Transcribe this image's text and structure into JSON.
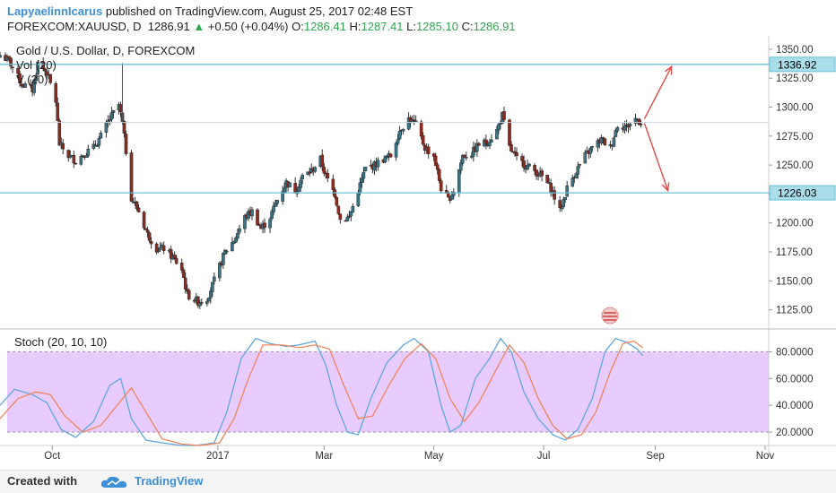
{
  "header": {
    "author": "LapyaelinnIcarus",
    "published_text": "published on TradingView.com, August 25, 2017 02:48 EST",
    "symbol": "FOREXCOM:XAUUSD, D",
    "last": "1286.91",
    "change": "+0.50 (+0.04%)",
    "o_label": "O:",
    "o": "1286.41",
    "h_label": "H:",
    "h": "1287.41",
    "l_label": "L:",
    "l": "1285.10",
    "c_label": "C:",
    "c": "1286.91"
  },
  "legend": {
    "title": "Gold / U.S. Dollar, D, FOREXCOM",
    "vol": "Vol (20)",
    "vol2": "V (20)"
  },
  "osc_title": "Stoch (20, 10, 10)",
  "footer": {
    "created": "Created with",
    "brand": "TradingView"
  },
  "colors": {
    "up": "#3a7385",
    "down": "#8b2a1f",
    "level": "#69c0d4",
    "k": "#5fa7e0",
    "d": "#f0845a",
    "band": "#e9ccff",
    "arrow": "#e34a4a"
  },
  "chart_data": [
    {
      "type": "candlestick",
      "title": "Gold / U.S. Dollar, D, FOREXCOM",
      "ylim": [
        1110,
        1360
      ],
      "y_ticks": [
        "1350.00",
        "1325.00",
        "1300.00",
        "1275.00",
        "1250.00",
        "1225.00",
        "1200.00",
        "1175.00",
        "1150.00",
        "1125.00"
      ],
      "x_ticks": [
        "Oct",
        "2017",
        "Mar",
        "May",
        "Jul",
        "Sep",
        "Nov"
      ],
      "x_tick_dates": [
        "2016-10-01",
        "2017-01-01",
        "2017-03-01",
        "2017-05-01",
        "2017-07-01",
        "2017-09-01",
        "2017-11-01"
      ],
      "x_range": [
        "2016-09-02",
        "2017-11-03"
      ],
      "levels": [
        {
          "label": "1336.92",
          "value": 1336.92
        },
        {
          "label": "1226.03",
          "value": 1226.03
        }
      ],
      "last_price": 1286.91,
      "projections": [
        {
          "from_date": "2017-08-26",
          "from": 1290,
          "to_date": "2017-09-10",
          "to": 1335
        },
        {
          "from_date": "2017-08-26",
          "from": 1286,
          "to_date": "2017-09-08",
          "to": 1228
        }
      ],
      "close_path": [
        [
          "2016-09-02",
          1345
        ],
        [
          "2016-09-07",
          1340
        ],
        [
          "2016-09-14",
          1320
        ],
        [
          "2016-09-20",
          1315
        ],
        [
          "2016-09-23",
          1338
        ],
        [
          "2016-09-28",
          1330
        ],
        [
          "2016-10-03",
          1305
        ],
        [
          "2016-10-05",
          1268
        ],
        [
          "2016-10-10",
          1258
        ],
        [
          "2016-10-14",
          1254
        ],
        [
          "2016-10-19",
          1260
        ],
        [
          "2016-10-24",
          1265
        ],
        [
          "2016-10-28",
          1275
        ],
        [
          "2016-11-02",
          1290
        ],
        [
          "2016-11-07",
          1302
        ],
        [
          "2016-11-09",
          1286
        ],
        [
          "2016-11-11",
          1262
        ],
        [
          "2016-11-14",
          1222
        ],
        [
          "2016-11-18",
          1210
        ],
        [
          "2016-11-23",
          1190
        ],
        [
          "2016-11-28",
          1178
        ],
        [
          "2016-12-02",
          1178
        ],
        [
          "2016-12-07",
          1170
        ],
        [
          "2016-12-12",
          1160
        ],
        [
          "2016-12-15",
          1138
        ],
        [
          "2016-12-21",
          1132
        ],
        [
          "2016-12-26",
          1135
        ],
        [
          "2016-12-30",
          1150
        ],
        [
          "2017-01-05",
          1175
        ],
        [
          "2017-01-10",
          1185
        ],
        [
          "2017-01-16",
          1205
        ],
        [
          "2017-01-20",
          1210
        ],
        [
          "2017-01-25",
          1195
        ],
        [
          "2017-01-30",
          1205
        ],
        [
          "2017-02-03",
          1220
        ],
        [
          "2017-02-08",
          1235
        ],
        [
          "2017-02-13",
          1228
        ],
        [
          "2017-02-17",
          1240
        ],
        [
          "2017-02-22",
          1245
        ],
        [
          "2017-02-27",
          1255
        ],
        [
          "2017-03-02",
          1240
        ],
        [
          "2017-03-07",
          1225
        ],
        [
          "2017-03-10",
          1203
        ],
        [
          "2017-03-15",
          1205
        ],
        [
          "2017-03-20",
          1228
        ],
        [
          "2017-03-24",
          1247
        ],
        [
          "2017-03-29",
          1250
        ],
        [
          "2017-04-03",
          1255
        ],
        [
          "2017-04-07",
          1258
        ],
        [
          "2017-04-12",
          1280
        ],
        [
          "2017-04-17",
          1290
        ],
        [
          "2017-04-21",
          1285
        ],
        [
          "2017-04-26",
          1265
        ],
        [
          "2017-05-01",
          1258
        ],
        [
          "2017-05-05",
          1230
        ],
        [
          "2017-05-09",
          1220
        ],
        [
          "2017-05-12",
          1228
        ],
        [
          "2017-05-17",
          1258
        ],
        [
          "2017-05-22",
          1260
        ],
        [
          "2017-05-26",
          1268
        ],
        [
          "2017-05-31",
          1270
        ],
        [
          "2017-06-05",
          1280
        ],
        [
          "2017-06-08",
          1293
        ],
        [
          "2017-06-12",
          1265
        ],
        [
          "2017-06-16",
          1255
        ],
        [
          "2017-06-21",
          1250
        ],
        [
          "2017-06-26",
          1245
        ],
        [
          "2017-06-30",
          1240
        ],
        [
          "2017-07-05",
          1230
        ],
        [
          "2017-07-10",
          1210
        ],
        [
          "2017-07-14",
          1230
        ],
        [
          "2017-07-19",
          1245
        ],
        [
          "2017-07-24",
          1258
        ],
        [
          "2017-07-28",
          1265
        ],
        [
          "2017-08-02",
          1272
        ],
        [
          "2017-08-07",
          1265
        ],
        [
          "2017-08-11",
          1285
        ],
        [
          "2017-08-16",
          1283
        ],
        [
          "2017-08-21",
          1290
        ],
        [
          "2017-08-24",
          1286.91
        ]
      ]
    },
    {
      "type": "line",
      "title": "Stoch (20, 10, 10)",
      "ylim": [
        10,
        95
      ],
      "y_ticks": [
        "80.0000",
        "60.0000",
        "40.0000",
        "20.0000"
      ],
      "band": [
        20,
        80
      ],
      "series": [
        {
          "color": "#5fa7e0",
          "points": [
            [
              "2016-09-02",
              40
            ],
            [
              "2016-09-10",
              52
            ],
            [
              "2016-09-20",
              48
            ],
            [
              "2016-09-28",
              42
            ],
            [
              "2016-10-06",
              22
            ],
            [
              "2016-10-14",
              16
            ],
            [
              "2016-10-24",
              28
            ],
            [
              "2016-11-02",
              55
            ],
            [
              "2016-11-08",
              60
            ],
            [
              "2016-11-14",
              30
            ],
            [
              "2016-11-22",
              14
            ],
            [
              "2016-12-01",
              12
            ],
            [
              "2016-12-12",
              10
            ],
            [
              "2016-12-20",
              10
            ],
            [
              "2016-12-30",
              12
            ],
            [
              "2017-01-06",
              35
            ],
            [
              "2017-01-14",
              75
            ],
            [
              "2017-01-22",
              90
            ],
            [
              "2017-01-30",
              86
            ],
            [
              "2017-02-08",
              84
            ],
            [
              "2017-02-15",
              85
            ],
            [
              "2017-02-24",
              88
            ],
            [
              "2017-03-02",
              70
            ],
            [
              "2017-03-08",
              40
            ],
            [
              "2017-03-14",
              20
            ],
            [
              "2017-03-20",
              18
            ],
            [
              "2017-03-27",
              45
            ],
            [
              "2017-04-05",
              72
            ],
            [
              "2017-04-14",
              85
            ],
            [
              "2017-04-20",
              90
            ],
            [
              "2017-04-28",
              80
            ],
            [
              "2017-05-05",
              40
            ],
            [
              "2017-05-10",
              20
            ],
            [
              "2017-05-16",
              25
            ],
            [
              "2017-05-24",
              60
            ],
            [
              "2017-06-01",
              75
            ],
            [
              "2017-06-07",
              90
            ],
            [
              "2017-06-13",
              80
            ],
            [
              "2017-06-20",
              50
            ],
            [
              "2017-06-28",
              30
            ],
            [
              "2017-07-06",
              18
            ],
            [
              "2017-07-13",
              14
            ],
            [
              "2017-07-20",
              22
            ],
            [
              "2017-07-28",
              45
            ],
            [
              "2017-08-04",
              80
            ],
            [
              "2017-08-10",
              90
            ],
            [
              "2017-08-16",
              87
            ],
            [
              "2017-08-22",
              82
            ],
            [
              "2017-08-25",
              77
            ]
          ]
        },
        {
          "color": "#f0845a",
          "points": [
            [
              "2016-09-02",
              30
            ],
            [
              "2016-09-12",
              45
            ],
            [
              "2016-09-22",
              50
            ],
            [
              "2016-09-30",
              48
            ],
            [
              "2016-10-08",
              32
            ],
            [
              "2016-10-18",
              20
            ],
            [
              "2016-10-28",
              25
            ],
            [
              "2016-11-06",
              40
            ],
            [
              "2016-11-14",
              53
            ],
            [
              "2016-11-22",
              35
            ],
            [
              "2016-12-01",
              15
            ],
            [
              "2016-12-12",
              11
            ],
            [
              "2016-12-22",
              10
            ],
            [
              "2017-01-02",
              12
            ],
            [
              "2017-01-10",
              30
            ],
            [
              "2017-01-18",
              60
            ],
            [
              "2017-01-26",
              85
            ],
            [
              "2017-02-06",
              85
            ],
            [
              "2017-02-15",
              83
            ],
            [
              "2017-02-24",
              85
            ],
            [
              "2017-03-04",
              82
            ],
            [
              "2017-03-12",
              55
            ],
            [
              "2017-03-20",
              30
            ],
            [
              "2017-03-28",
              32
            ],
            [
              "2017-04-06",
              55
            ],
            [
              "2017-04-15",
              75
            ],
            [
              "2017-04-24",
              86
            ],
            [
              "2017-05-02",
              75
            ],
            [
              "2017-05-10",
              45
            ],
            [
              "2017-05-18",
              28
            ],
            [
              "2017-05-26",
              42
            ],
            [
              "2017-06-04",
              65
            ],
            [
              "2017-06-12",
              85
            ],
            [
              "2017-06-20",
              72
            ],
            [
              "2017-06-28",
              45
            ],
            [
              "2017-07-06",
              25
            ],
            [
              "2017-07-14",
              15
            ],
            [
              "2017-07-22",
              18
            ],
            [
              "2017-07-30",
              35
            ],
            [
              "2017-08-07",
              65
            ],
            [
              "2017-08-14",
              86
            ],
            [
              "2017-08-20",
              88
            ],
            [
              "2017-08-25",
              83
            ]
          ]
        }
      ]
    }
  ]
}
